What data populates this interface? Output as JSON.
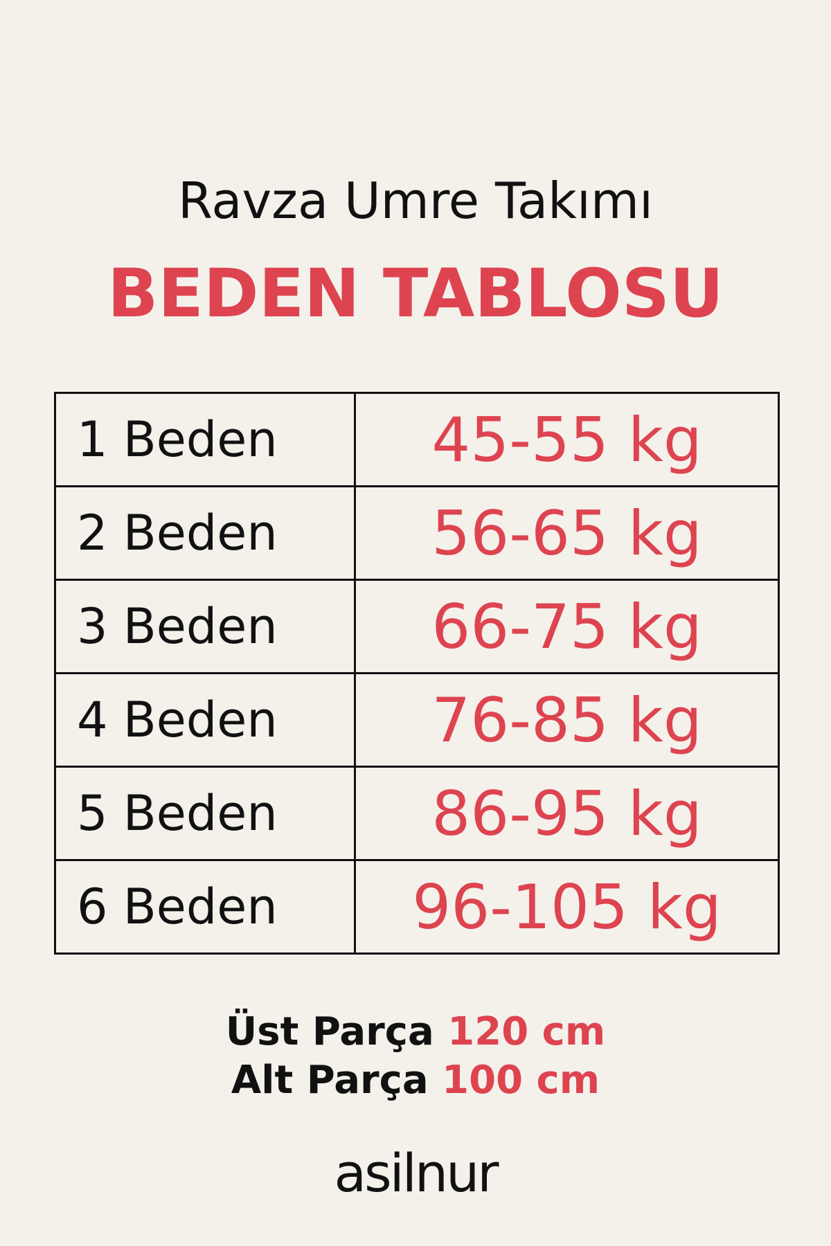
{
  "header": {
    "title": "Ravza Umre Takımı",
    "subtitle": "BEDEN TABLOSU"
  },
  "table": {
    "rows": [
      [
        "1 Beden",
        "45-55 kg"
      ],
      [
        "2 Beden",
        "56-65 kg"
      ],
      [
        "3 Beden",
        "66-75 kg"
      ],
      [
        "4 Beden",
        "76-85 kg"
      ],
      [
        "5 Beden",
        "86-95 kg"
      ],
      [
        "6 Beden",
        "96-105 kg"
      ]
    ]
  },
  "lengths": [
    {
      "label": "Üst Parça",
      "value": "120 cm"
    },
    {
      "label": "Alt Parça",
      "value": "100 cm"
    }
  ],
  "brand": "asilnur"
}
